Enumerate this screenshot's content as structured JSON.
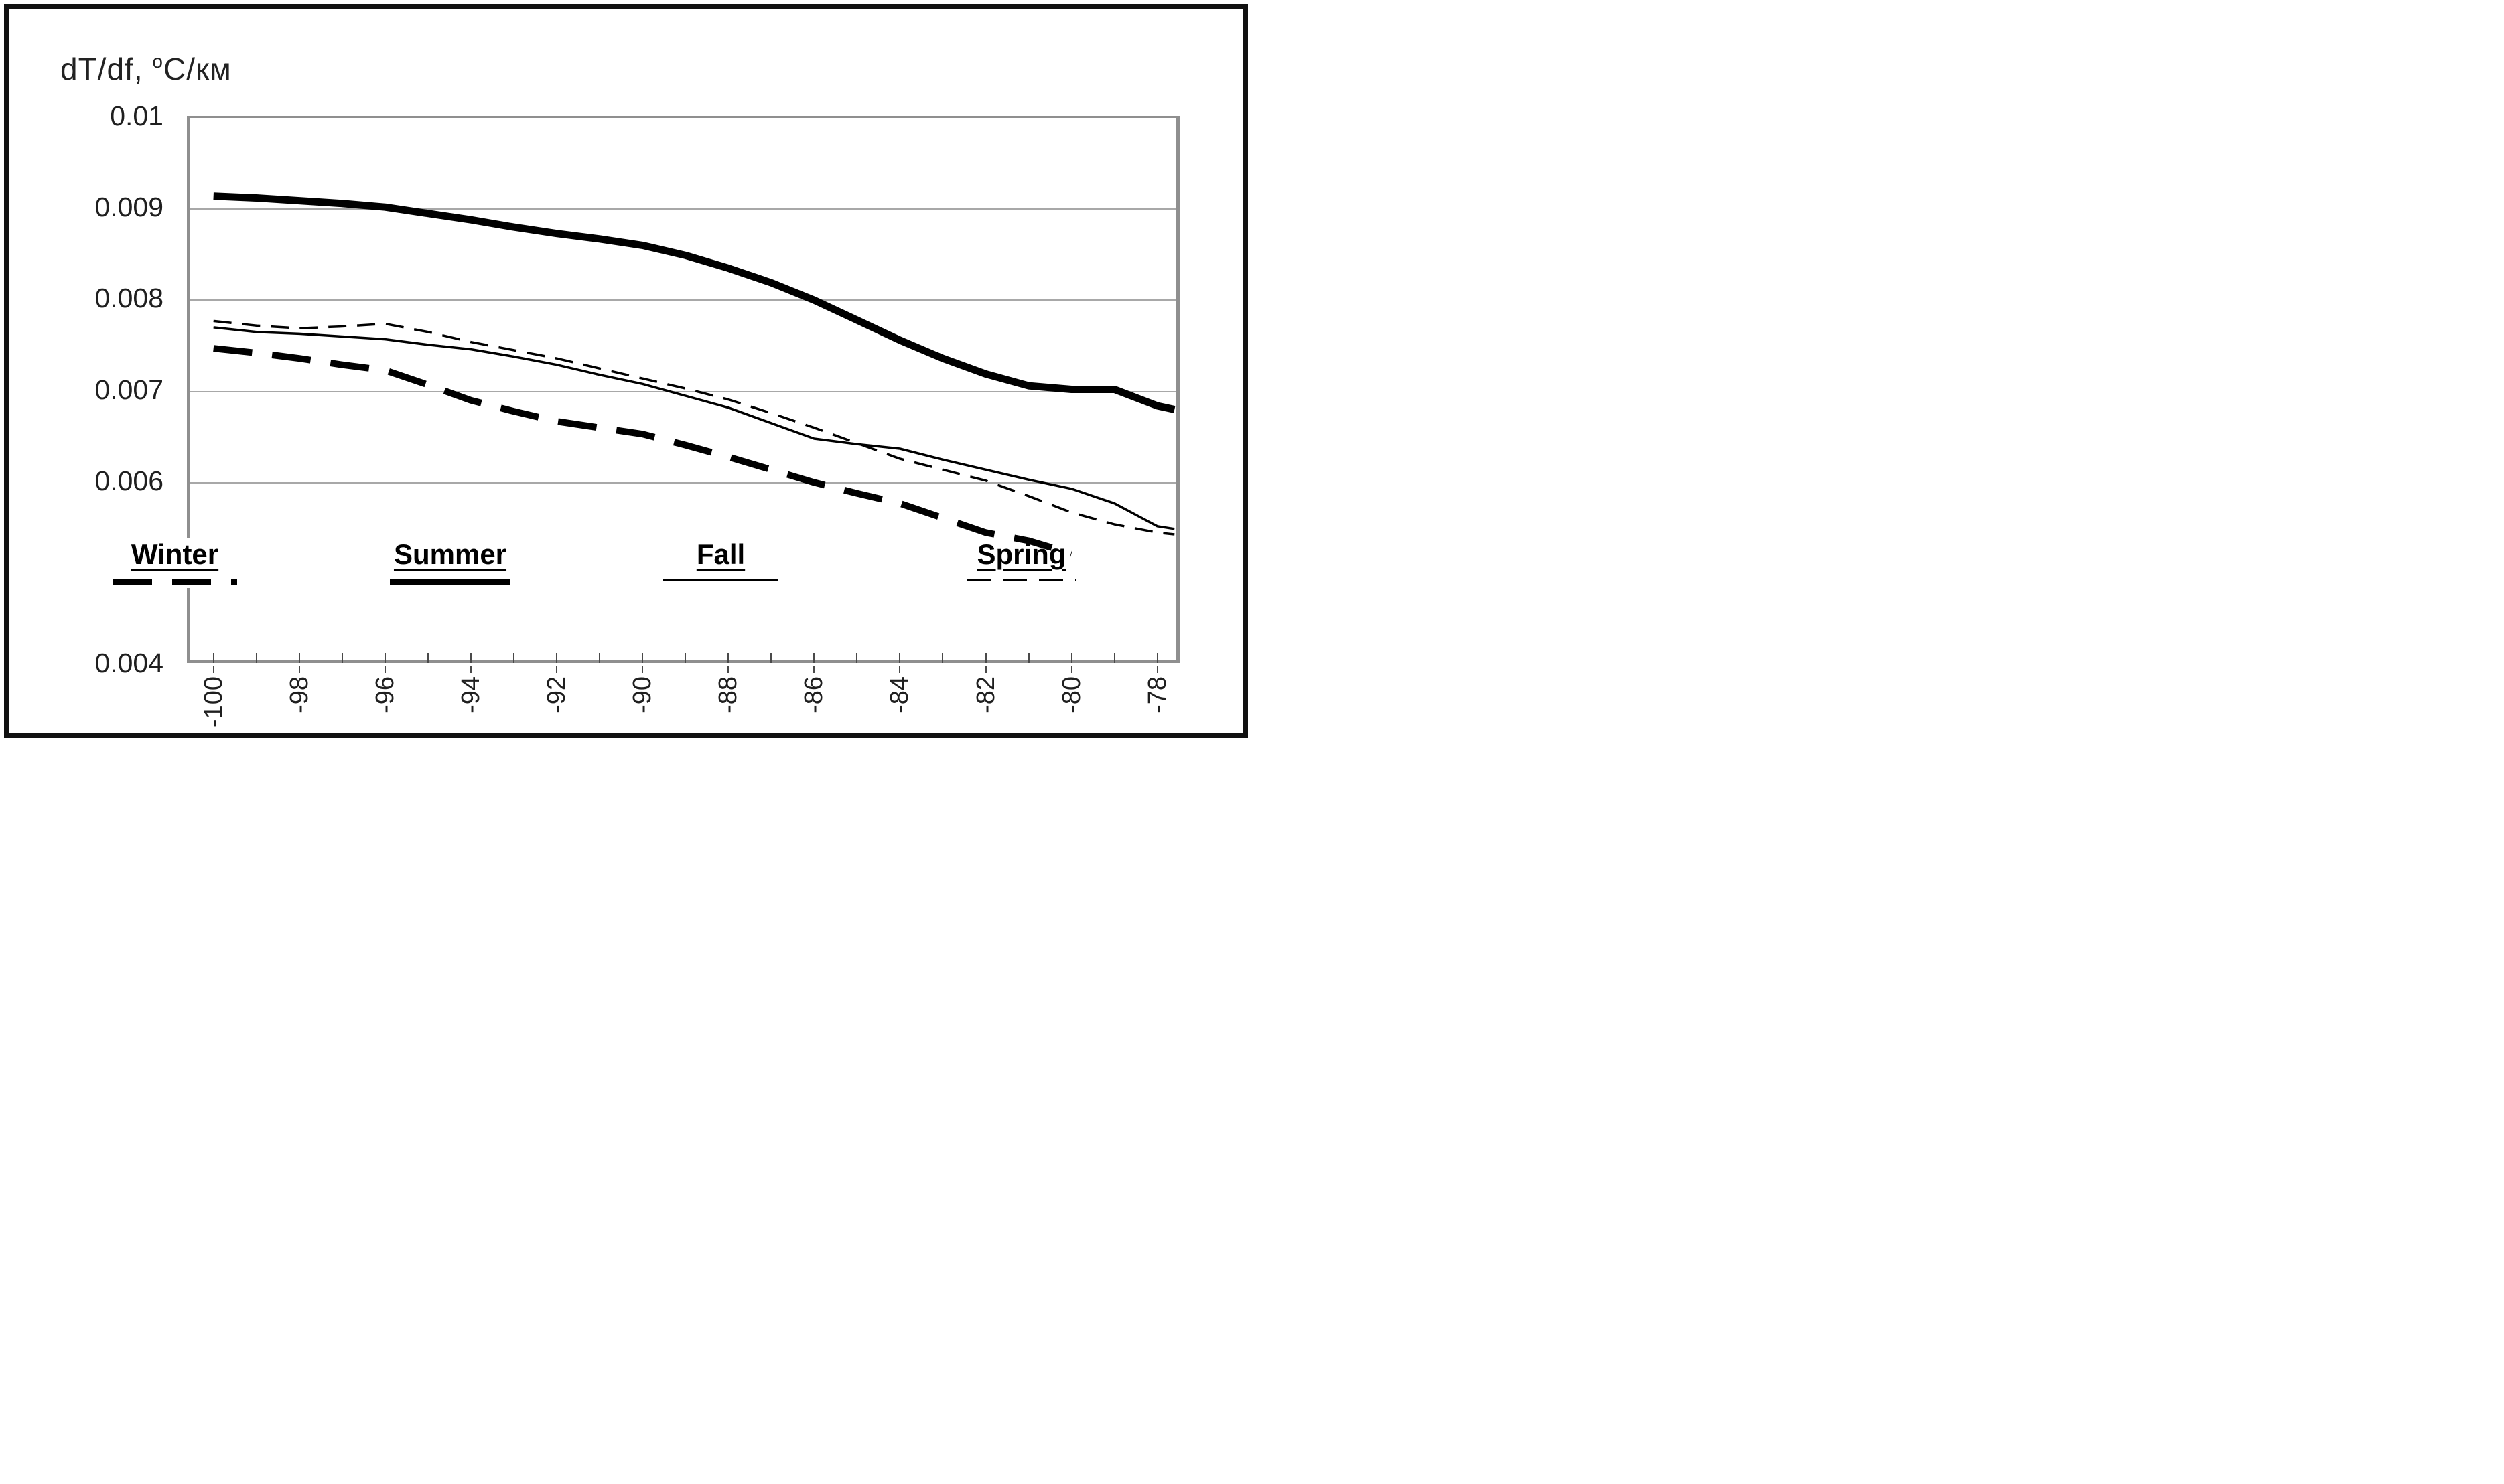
{
  "chart_data": {
    "type": "line",
    "title": "",
    "ylabel": {
      "prefix": "dT/df, ",
      "sup": "o",
      "suffix": "С/км"
    },
    "xlabel": "",
    "y_axis": {
      "min": 0.004,
      "max": 0.01,
      "gridlines": [
        0.009,
        0.008,
        0.007,
        0.006
      ],
      "tick_labels": [
        {
          "value": 0.01,
          "label": "0.01"
        },
        {
          "value": 0.009,
          "label": "0.009"
        },
        {
          "value": 0.008,
          "label": "0.008"
        },
        {
          "value": 0.007,
          "label": "0.007"
        },
        {
          "value": 0.006,
          "label": "0.006"
        },
        {
          "value": 0.004,
          "label": "0.004"
        }
      ]
    },
    "x_axis": {
      "min": -100.62,
      "max": -77.48,
      "minor_tick_from": -100,
      "minor_tick_to": -78,
      "minor_tick_step": 1,
      "labeled_ticks": [
        -100,
        -98,
        -96,
        -94,
        -92,
        -90,
        -88,
        -86,
        -84,
        -82,
        -80,
        -78
      ]
    },
    "x": [
      -100,
      -99,
      -98,
      -97,
      -96,
      -95,
      -94,
      -93,
      -92,
      -91,
      -90,
      -89,
      -88,
      -87,
      -86,
      -85,
      -84,
      -83,
      -82,
      -81,
      -80,
      -79,
      -78,
      -77.6
    ],
    "series": [
      {
        "name": "Fall",
        "line_style": "thin-solid",
        "values": [
          0.00768,
          0.00763,
          0.00761,
          0.00758,
          0.00755,
          0.00749,
          0.00744,
          0.00736,
          0.00727,
          0.00716,
          0.00706,
          0.00693,
          0.0068,
          0.00663,
          0.00646,
          0.0064,
          0.00635,
          0.00623,
          0.00612,
          0.00601,
          0.00591,
          0.00575,
          0.0055,
          0.00547
        ]
      },
      {
        "name": "Spring",
        "line_style": "thin-dashed",
        "values": [
          0.00775,
          0.0077,
          0.00767,
          0.00769,
          0.00772,
          0.00763,
          0.00752,
          0.00743,
          0.00734,
          0.00723,
          0.00712,
          0.00701,
          0.00689,
          0.00674,
          0.00658,
          0.00641,
          0.00624,
          0.00612,
          0.006,
          0.00583,
          0.00565,
          0.00552,
          0.00543,
          0.00541
        ]
      },
      {
        "name": "Winter",
        "line_style": "thick-dashed",
        "values": [
          0.00745,
          0.0074,
          0.00734,
          0.00727,
          0.00721,
          0.00705,
          0.00688,
          0.00676,
          0.00665,
          0.00658,
          0.00651,
          0.00639,
          0.00626,
          0.00612,
          0.00598,
          0.00586,
          0.00575,
          0.00559,
          0.00543,
          0.00534,
          0.0052,
          null,
          null,
          null
        ]
      },
      {
        "name": "Summer",
        "line_style": "thick-solid",
        "values": [
          0.00912,
          0.0091,
          0.00907,
          0.00904,
          0.009,
          0.00893,
          0.00886,
          0.00878,
          0.00871,
          0.00865,
          0.00858,
          0.00847,
          0.00833,
          0.00817,
          0.00798,
          0.00776,
          0.00754,
          0.00734,
          0.00717,
          0.00704,
          0.007,
          0.007,
          0.00682,
          0.00678
        ]
      }
    ],
    "legend": {
      "position": "inside-bottom",
      "items": [
        {
          "label": "Winter",
          "line_style": "thick-dashed"
        },
        {
          "label": "Summer",
          "line_style": "thick-solid"
        },
        {
          "label": "Fall",
          "line_style": "thin-solid"
        },
        {
          "label": "Spring",
          "line_style": "thin-dashed"
        }
      ]
    },
    "colors": {
      "curve": "#000000",
      "grid": "#a8a8a8",
      "frame": "#8f8f8f",
      "text": "#1f1f1f"
    },
    "grid": "horizontal-only"
  }
}
